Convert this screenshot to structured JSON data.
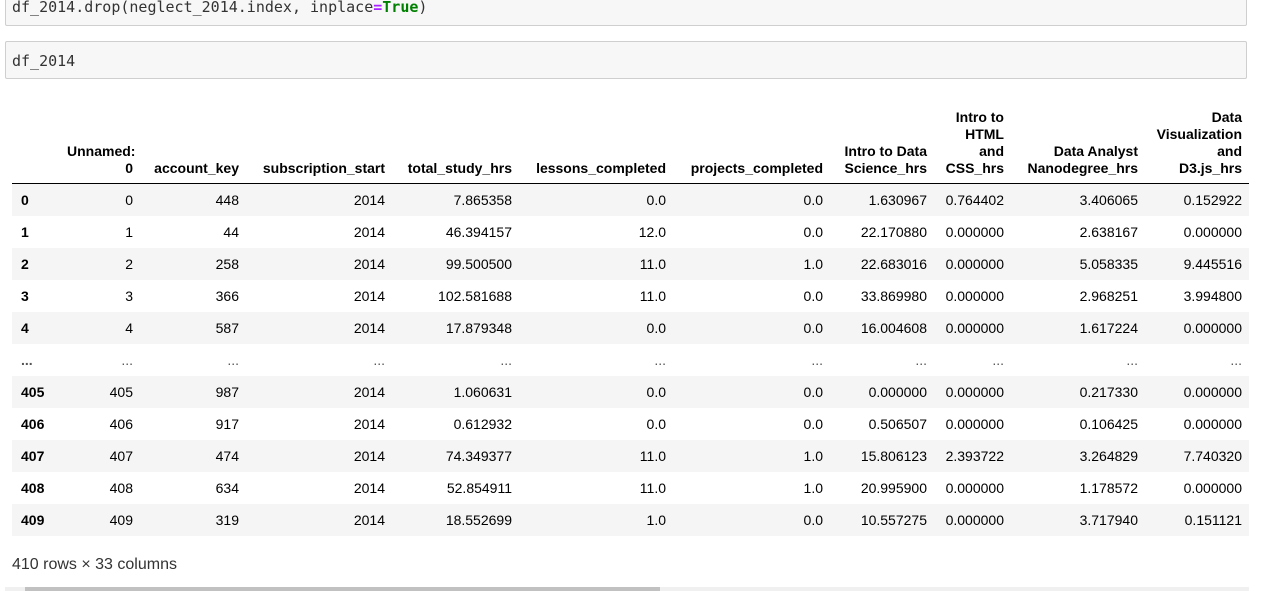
{
  "cells": {
    "cell1": {
      "prefix": "df_2014.drop(neglect_2014.index, inplace",
      "op": "=",
      "kw": "True",
      "suffix": ")"
    },
    "cell2": {
      "code": "df_2014"
    }
  },
  "table": {
    "columns": [
      "",
      "Unnamed: 0",
      "account_key",
      "subscription_start",
      "total_study_hrs",
      "lessons_completed",
      "projects_completed",
      "Intro to Data Science_hrs",
      "Intro to HTML and CSS_hrs",
      "Data Analyst Nanodegree_hrs",
      "Data Visualization and D3.js_hrs"
    ],
    "rows": [
      [
        "0",
        "0",
        "448",
        "2014",
        "7.865358",
        "0.0",
        "0.0",
        "1.630967",
        "0.764402",
        "3.406065",
        "0.152922"
      ],
      [
        "1",
        "1",
        "44",
        "2014",
        "46.394157",
        "12.0",
        "0.0",
        "22.170880",
        "0.000000",
        "2.638167",
        "0.000000"
      ],
      [
        "2",
        "2",
        "258",
        "2014",
        "99.500500",
        "11.0",
        "1.0",
        "22.683016",
        "0.000000",
        "5.058335",
        "9.445516"
      ],
      [
        "3",
        "3",
        "366",
        "2014",
        "102.581688",
        "11.0",
        "0.0",
        "33.869980",
        "0.000000",
        "2.968251",
        "3.994800"
      ],
      [
        "4",
        "4",
        "587",
        "2014",
        "17.879348",
        "0.0",
        "0.0",
        "16.004608",
        "0.000000",
        "1.617224",
        "0.000000"
      ],
      [
        "...",
        "...",
        "...",
        "...",
        "...",
        "...",
        "...",
        "...",
        "...",
        "...",
        "..."
      ],
      [
        "405",
        "405",
        "987",
        "2014",
        "1.060631",
        "0.0",
        "0.0",
        "0.000000",
        "0.000000",
        "0.217330",
        "0.000000"
      ],
      [
        "406",
        "406",
        "917",
        "2014",
        "0.612932",
        "0.0",
        "0.0",
        "0.506507",
        "0.000000",
        "0.106425",
        "0.000000"
      ],
      [
        "407",
        "407",
        "474",
        "2014",
        "74.349377",
        "11.0",
        "1.0",
        "15.806123",
        "2.393722",
        "3.264829",
        "7.740320"
      ],
      [
        "408",
        "408",
        "634",
        "2014",
        "52.854911",
        "11.0",
        "1.0",
        "20.995900",
        "0.000000",
        "1.178572",
        "0.000000"
      ],
      [
        "409",
        "409",
        "319",
        "2014",
        "18.552699",
        "1.0",
        "0.0",
        "10.557275",
        "0.000000",
        "3.717940",
        "0.151121"
      ]
    ]
  },
  "shape_text": "410 rows × 33 columns"
}
